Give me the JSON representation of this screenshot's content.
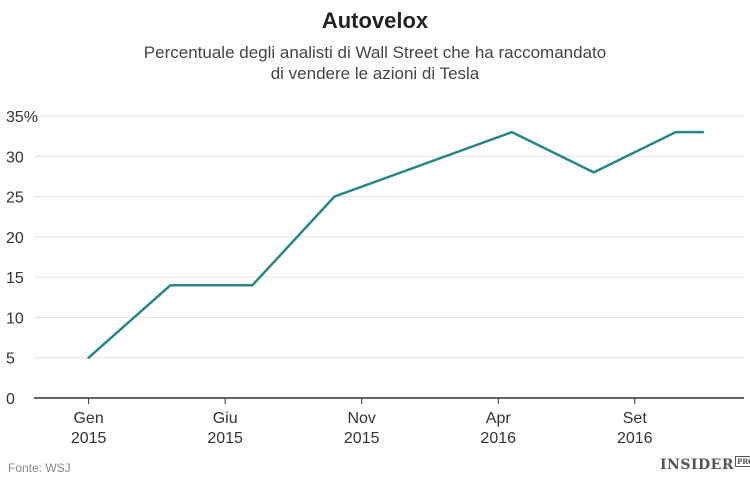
{
  "chart_data": {
    "type": "line",
    "title": "Autovelox",
    "subtitle_lines": [
      "Percentuale degli analisti di Wall Street che ha raccomandato",
      "di vendere le azioni di Tesla"
    ],
    "xlabel": "",
    "ylabel": "",
    "x_tick_labels": [
      {
        "line1": "Gen",
        "line2": "2015",
        "month_index": 0
      },
      {
        "line1": "Giu",
        "line2": "2015",
        "month_index": 5
      },
      {
        "line1": "Nov",
        "line2": "2015",
        "month_index": 10
      },
      {
        "line1": "Apr",
        "line2": "2016",
        "month_index": 15
      },
      {
        "line1": "Set",
        "line2": "2016",
        "month_index": 20
      }
    ],
    "y_ticks": [
      {
        "value": 0,
        "label": "0"
      },
      {
        "value": 5,
        "label": "5"
      },
      {
        "value": 10,
        "label": "10"
      },
      {
        "value": 15,
        "label": "15"
      },
      {
        "value": 20,
        "label": "20"
      },
      {
        "value": 25,
        "label": "25"
      },
      {
        "value": 30,
        "label": "30"
      },
      {
        "value": 35,
        "label": "35%"
      }
    ],
    "ylim": [
      0,
      35
    ],
    "xlim_months": [
      -2,
      24
    ],
    "grid": true,
    "series": [
      {
        "color": "#2a8585",
        "points": [
          {
            "month": 0,
            "value": 5
          },
          {
            "month": 3,
            "value": 14
          },
          {
            "month": 6,
            "value": 14
          },
          {
            "month": 9,
            "value": 25
          },
          {
            "month": 15.5,
            "value": 33
          },
          {
            "month": 18.5,
            "value": 28
          },
          {
            "month": 21.5,
            "value": 33
          },
          {
            "month": 22.5,
            "value": 33
          }
        ]
      }
    ]
  },
  "footer": {
    "source": "Fonte: WSJ",
    "brand": "INSIDER",
    "brand_sub": "PRO"
  }
}
